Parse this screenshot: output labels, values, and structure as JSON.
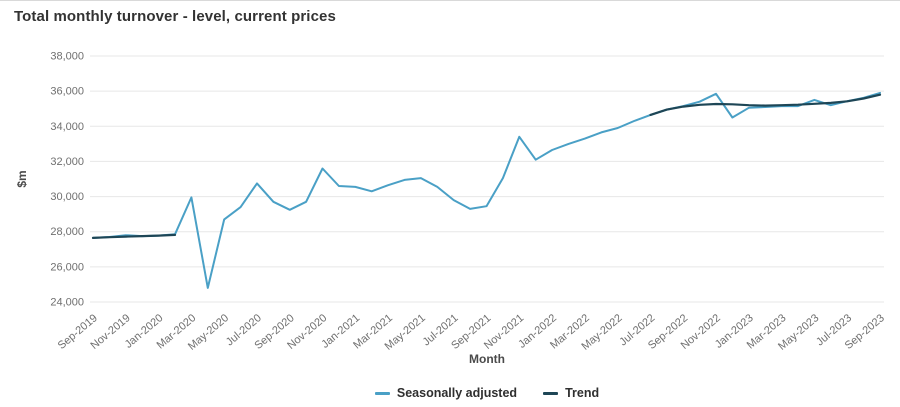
{
  "page": {
    "title": "Total monthly turnover - level, current prices"
  },
  "colors": {
    "background": "#ffffff",
    "top_border": "#d9d9d9",
    "grid": "#e7e7e7",
    "axis_text": "#6f6f6f",
    "axis_title": "#4a4a4a",
    "title_text": "#333333",
    "seasonally_adjusted_line": "#4aa0c6",
    "trend_line": "#1e4656"
  },
  "chart_data": {
    "type": "line",
    "title": "Total monthly turnover - level, current prices",
    "xlabel": "Month",
    "ylabel": "$m",
    "ylim": [
      24000,
      38000
    ],
    "ytick_step": 2000,
    "ytick_labels": [
      "24,000",
      "26,000",
      "28,000",
      "30,000",
      "32,000",
      "34,000",
      "36,000",
      "38,000"
    ],
    "xtick_every": 2,
    "grid": "horizontal-only",
    "legend_position": "bottom-center",
    "x": [
      "Sep-2019",
      "Oct-2019",
      "Nov-2019",
      "Dec-2019",
      "Jan-2020",
      "Feb-2020",
      "Mar-2020",
      "Apr-2020",
      "May-2020",
      "Jun-2020",
      "Jul-2020",
      "Aug-2020",
      "Sep-2020",
      "Oct-2020",
      "Nov-2020",
      "Dec-2020",
      "Jan-2021",
      "Feb-2021",
      "Mar-2021",
      "Apr-2021",
      "May-2021",
      "Jun-2021",
      "Jul-2021",
      "Aug-2021",
      "Sep-2021",
      "Oct-2021",
      "Nov-2021",
      "Dec-2021",
      "Jan-2022",
      "Feb-2022",
      "Mar-2022",
      "Apr-2022",
      "May-2022",
      "Jun-2022",
      "Jul-2022",
      "Aug-2022",
      "Sep-2022",
      "Oct-2022",
      "Nov-2022",
      "Dec-2022",
      "Jan-2023",
      "Feb-2023",
      "Mar-2023",
      "Apr-2023",
      "May-2023",
      "Jun-2023",
      "Jul-2023",
      "Aug-2023",
      "Sep-2023"
    ],
    "series": [
      {
        "name": "Seasonally adjusted",
        "color": "#4aa0c6",
        "stroke_width": 2,
        "values": [
          27650,
          27700,
          27800,
          27750,
          27780,
          27850,
          29950,
          24800,
          28700,
          29400,
          30750,
          29700,
          29250,
          29700,
          31600,
          30600,
          30550,
          30300,
          30650,
          30950,
          31050,
          30550,
          29800,
          29300,
          29450,
          31050,
          33400,
          32100,
          32650,
          33000,
          33300,
          33650,
          33900,
          34300,
          34650,
          34950,
          35150,
          35400,
          35850,
          34500,
          35050,
          35100,
          35150,
          35150,
          35500,
          35200,
          35430,
          35620,
          35900
        ]
      },
      {
        "name": "Trend",
        "color": "#1e4656",
        "stroke_width": 2.2,
        "values": [
          27650,
          27690,
          27720,
          27750,
          27780,
          27820,
          null,
          null,
          null,
          null,
          null,
          null,
          null,
          null,
          null,
          null,
          null,
          null,
          null,
          null,
          null,
          null,
          null,
          null,
          null,
          null,
          null,
          null,
          null,
          null,
          null,
          null,
          null,
          null,
          34650,
          34950,
          35120,
          35220,
          35270,
          35250,
          35200,
          35180,
          35200,
          35230,
          35280,
          35330,
          35420,
          35580,
          35800
        ]
      }
    ]
  }
}
